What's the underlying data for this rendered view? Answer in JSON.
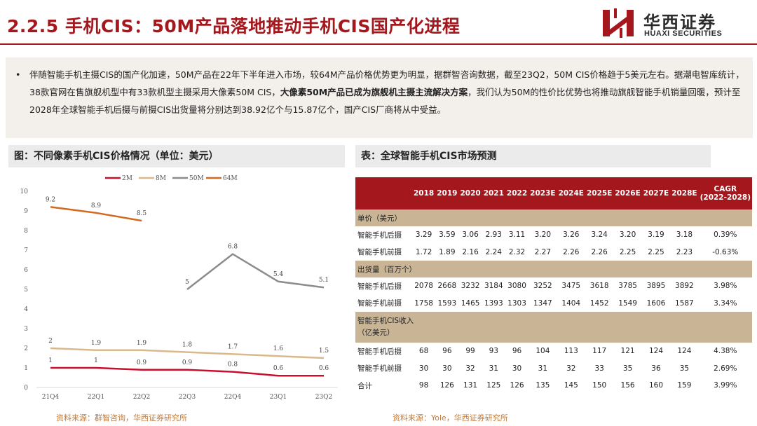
{
  "header": {
    "title": "2.2.5 手机CIS：50M产品落地推动手机CIS国产化进程",
    "logo_cn": "华西证券",
    "logo_en": "HUAXI SECURITIES"
  },
  "summary": {
    "bullet": "•",
    "text_1": "伴随智能手机主摄CIS的国产化加速，50M产品在22年下半年进入市场，较64M产品价格优势更为明显，据群智咨询数据，截至23Q2，50M CIS价格趋于5美元左右。据潮电智库统计，38款官网在售旗舰机型中有33款机型主摄采用大像素50M CIS，",
    "text_bold": "大像素50M产品已成为旗舰机主摄主流解决方案",
    "text_2": "，我们认为50M的性价比优势也将推动旗舰智能手机销量回暖，预计至2028年全球智能手机后摄与前摄CIS出货量将分别达到38.92亿个与15.87亿个，国产CIS厂商将从中受益。"
  },
  "chart_header": "图：不同像素手机CIS价格情况（单位：美元）",
  "table_header": "表：全球智能手机CIS市场预测",
  "chart_data": {
    "type": "line",
    "title": "不同像素手机CIS价格情况（单位：美元）",
    "categories": [
      "21Q4",
      "22Q1",
      "22Q2",
      "22Q3",
      "22Q4",
      "23Q1",
      "23Q2"
    ],
    "ylim": [
      0,
      10
    ],
    "yticks": [
      "0",
      "1",
      "2",
      "3",
      "4",
      "5",
      "6",
      "7",
      "8",
      "9",
      "10"
    ],
    "series": [
      {
        "name": "2M",
        "color": "#c8102e",
        "values": [
          1,
          1,
          0.9,
          0.9,
          0.8,
          0.6,
          0.6
        ],
        "labels": [
          "1",
          "1",
          "0.9",
          "0.9",
          "0.8",
          "0.6",
          "0.6"
        ]
      },
      {
        "name": "8M",
        "color": "#d9b98c",
        "values": [
          2,
          1.9,
          1.9,
          1.8,
          1.7,
          1.6,
          1.5
        ],
        "labels": [
          "2",
          "1.9",
          "1.9",
          "1.8",
          "1.7",
          "1.6",
          "1.5"
        ]
      },
      {
        "name": "50M",
        "color": "#8c8c8c",
        "values": [
          null,
          null,
          null,
          5,
          6.8,
          5.4,
          5.1
        ],
        "labels": [
          null,
          null,
          null,
          "5",
          "6.8",
          "5.4",
          "5.1"
        ]
      },
      {
        "name": "64M",
        "color": "#d2691e",
        "values": [
          9.2,
          8.9,
          8.5,
          null,
          null,
          null,
          null
        ],
        "labels": [
          "9.2",
          "8.9",
          "8.5",
          null,
          null,
          null,
          null
        ]
      }
    ]
  },
  "table": {
    "columns": [
      "",
      "2018",
      "2019",
      "2020",
      "2021",
      "2022",
      "2023E",
      "2024E",
      "2025E",
      "2026E",
      "2027E",
      "2028E",
      "CAGR\n(2022-2028)"
    ],
    "cagr_line1": "CAGR",
    "cagr_line2": "(2022-2028)",
    "sections": [
      {
        "title": "单价（美元）",
        "rows": [
          {
            "label": "智能手机后摄",
            "values": [
              "3.29",
              "3.59",
              "3.06",
              "2.93",
              "3.11",
              "3.20",
              "3.26",
              "3.24",
              "3.20",
              "3.19",
              "3.18",
              "0.39%"
            ]
          },
          {
            "label": "智能手机前摄",
            "values": [
              "1.72",
              "1.89",
              "2.16",
              "2.24",
              "2.32",
              "2.27",
              "2.26",
              "2.26",
              "2.25",
              "2.25",
              "2.23",
              "-0.63%"
            ]
          }
        ]
      },
      {
        "title": "出货量（百万个）",
        "rows": [
          {
            "label": "智能手机后摄",
            "values": [
              "2078",
              "2668",
              "3232",
              "3184",
              "3080",
              "3252",
              "3475",
              "3618",
              "3785",
              "3895",
              "3892",
              "3.98%"
            ]
          },
          {
            "label": "智能手机前摄",
            "values": [
              "1758",
              "1593",
              "1465",
              "1393",
              "1303",
              "1347",
              "1404",
              "1452",
              "1549",
              "1606",
              "1587",
              "3.34%"
            ]
          }
        ]
      },
      {
        "title": "智能手机CIS收入（亿美元）",
        "title_line1": "智能手机CIS收入",
        "title_line2": "（亿美元）",
        "rows": [
          {
            "label": "智能手机后摄",
            "values": [
              "68",
              "96",
              "99",
              "93",
              "96",
              "104",
              "113",
              "117",
              "121",
              "124",
              "124",
              "4.38%"
            ]
          },
          {
            "label": "智能手机前摄",
            "values": [
              "30",
              "30",
              "32",
              "31",
              "30",
              "31",
              "32",
              "33",
              "35",
              "36",
              "35",
              "2.69%"
            ]
          },
          {
            "label": "合计",
            "values": [
              "98",
              "126",
              "131",
              "125",
              "126",
              "135",
              "145",
              "150",
              "156",
              "160",
              "159",
              "3.99%"
            ]
          }
        ]
      }
    ]
  },
  "sources": {
    "left": "资料来源：群智咨询，华西证券研究所",
    "right": "资料来源：Yole，华西证券研究所"
  }
}
